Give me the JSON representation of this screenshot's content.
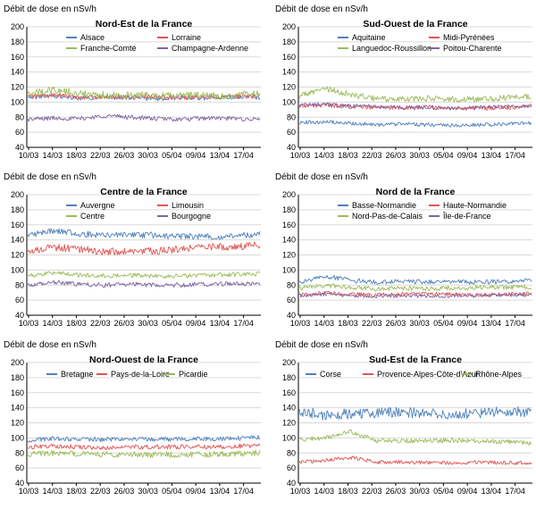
{
  "chart_data": [
    {
      "type": "line",
      "unit_label": "Débit de dose en nSv/h",
      "title": "Nord-Est de la France",
      "ylim": [
        40,
        200
      ],
      "yticks": [
        40,
        60,
        80,
        100,
        120,
        140,
        160,
        180,
        200
      ],
      "xticks": [
        "10/03",
        "14/03",
        "18/03",
        "22/03",
        "26/03",
        "30/03",
        "05/04",
        "09/04",
        "13/04",
        "17/04"
      ],
      "series": [
        {
          "name": "Alsace",
          "color": "#4f81bd",
          "mean": 106,
          "noise": 3,
          "values": [
            106,
            108,
            105,
            107,
            106,
            104,
            106,
            105,
            107,
            106
          ]
        },
        {
          "name": "Lorraine",
          "color": "#e05555",
          "mean": 107,
          "noise": 3,
          "values": [
            108,
            109,
            107,
            106,
            107,
            107,
            106,
            107,
            107,
            108
          ]
        },
        {
          "name": "Franche-Comté",
          "color": "#9bbb59",
          "mean": 109,
          "noise": 5,
          "values": [
            110,
            116,
            112,
            109,
            110,
            108,
            109,
            108,
            109,
            111
          ]
        },
        {
          "name": "Champagne-Ardenne",
          "color": "#8064a2",
          "mean": 78,
          "noise": 3,
          "values": [
            77,
            79,
            78,
            82,
            80,
            78,
            77,
            79,
            78,
            77
          ]
        }
      ]
    },
    {
      "type": "line",
      "unit_label": "Débit de dose en nSv/h",
      "title": "Sud-Ouest de la France",
      "ylim": [
        40,
        200
      ],
      "yticks": [
        40,
        60,
        80,
        100,
        120,
        140,
        160,
        180,
        200
      ],
      "xticks": [
        "10/03",
        "14/03",
        "18/03",
        "22/03",
        "26/03",
        "30/03",
        "05/04",
        "09/04",
        "13/04",
        "17/04"
      ],
      "series": [
        {
          "name": "Aquitaine",
          "color": "#4f81bd",
          "mean": 72,
          "noise": 2.5,
          "values": [
            73,
            74,
            72,
            70,
            71,
            70,
            69,
            70,
            71,
            72
          ]
        },
        {
          "name": "Midi-Pyrénées",
          "color": "#e05555",
          "mean": 94,
          "noise": 3,
          "values": [
            95,
            96,
            94,
            93,
            93,
            93,
            92,
            92,
            93,
            94
          ]
        },
        {
          "name": "Languedoc-Roussillon",
          "color": "#9bbb59",
          "mean": 106,
          "noise": 4,
          "values": [
            108,
            118,
            110,
            104,
            104,
            105,
            104,
            104,
            106,
            107
          ]
        },
        {
          "name": "Poitou-Charente",
          "color": "#8064a2",
          "mean": 94,
          "noise": 2.5,
          "values": [
            96,
            97,
            95,
            94,
            93,
            93,
            92,
            93,
            94,
            95
          ]
        }
      ]
    },
    {
      "type": "line",
      "unit_label": "Débit de dose en nSv/h",
      "title": "Centre de la France",
      "ylim": [
        40,
        200
      ],
      "yticks": [
        40,
        60,
        80,
        100,
        120,
        140,
        160,
        180,
        200
      ],
      "xticks": [
        "10/03",
        "14/03",
        "18/03",
        "22/03",
        "26/03",
        "30/03",
        "05/04",
        "09/04",
        "13/04",
        "17/04"
      ],
      "series": [
        {
          "name": "Auvergne",
          "color": "#4f81bd",
          "mean": 146,
          "noise": 4,
          "values": [
            146,
            152,
            148,
            146,
            147,
            146,
            145,
            144,
            145,
            148
          ]
        },
        {
          "name": "Limousin",
          "color": "#e05555",
          "mean": 128,
          "noise": 5,
          "values": [
            125,
            130,
            128,
            124,
            126,
            125,
            128,
            130,
            131,
            133
          ]
        },
        {
          "name": "Centre",
          "color": "#9bbb59",
          "mean": 93,
          "noise": 3,
          "values": [
            92,
            96,
            93,
            92,
            93,
            92,
            92,
            93,
            94,
            95
          ]
        },
        {
          "name": "Bourgogne",
          "color": "#8064a2",
          "mean": 81,
          "noise": 3,
          "values": [
            80,
            84,
            81,
            80,
            81,
            80,
            80,
            81,
            82,
            82
          ]
        }
      ]
    },
    {
      "type": "line",
      "unit_label": "Débit de dose en nSv/h",
      "title": "Nord de la France",
      "ylim": [
        40,
        200
      ],
      "yticks": [
        40,
        60,
        80,
        100,
        120,
        140,
        160,
        180,
        200
      ],
      "xticks": [
        "10/03",
        "14/03",
        "18/03",
        "22/03",
        "26/03",
        "30/03",
        "05/04",
        "09/04",
        "13/04",
        "17/04"
      ],
      "series": [
        {
          "name": "Basse-Normandie",
          "color": "#4f81bd",
          "mean": 84,
          "noise": 3,
          "values": [
            84,
            92,
            86,
            84,
            85,
            84,
            84,
            84,
            85,
            86
          ]
        },
        {
          "name": "Haute-Normandie",
          "color": "#e05555",
          "mean": 68,
          "noise": 2.5,
          "values": [
            67,
            70,
            68,
            67,
            68,
            68,
            68,
            67,
            68,
            69
          ]
        },
        {
          "name": "Nord-Pas-de-Calais",
          "color": "#9bbb59",
          "mean": 76,
          "noise": 3,
          "values": [
            76,
            80,
            77,
            75,
            76,
            75,
            76,
            77,
            77,
            78
          ]
        },
        {
          "name": "Île-de-France",
          "color": "#8064a2",
          "mean": 66,
          "noise": 2.5,
          "values": [
            66,
            68,
            66,
            65,
            66,
            65,
            66,
            66,
            67,
            67
          ]
        }
      ]
    },
    {
      "type": "line",
      "unit_label": "Débit de dose en nSv/h",
      "title": "Nord-Ouest de la France",
      "ylim": [
        40,
        200
      ],
      "yticks": [
        40,
        60,
        80,
        100,
        120,
        140,
        160,
        180,
        200
      ],
      "xticks": [
        "10/03",
        "14/03",
        "18/03",
        "22/03",
        "26/03",
        "30/03",
        "05/04",
        "09/04",
        "13/04",
        "17/04"
      ],
      "series": [
        {
          "name": "Bretagne",
          "color": "#4f81bd",
          "mean": 98,
          "noise": 3,
          "values": [
            97,
            99,
            98,
            98,
            99,
            98,
            98,
            99,
            99,
            101
          ]
        },
        {
          "name": "Pays-de-la-Loire",
          "color": "#e05555",
          "mean": 88,
          "noise": 3,
          "values": [
            88,
            89,
            88,
            87,
            88,
            88,
            88,
            88,
            89,
            90
          ]
        },
        {
          "name": "Picardie",
          "color": "#9bbb59",
          "mean": 78,
          "noise": 4,
          "values": [
            78,
            80,
            79,
            78,
            78,
            78,
            78,
            78,
            79,
            80
          ]
        }
      ]
    },
    {
      "type": "line",
      "unit_label": "Débit de dose en nSv/h",
      "title": "Sud-Est de la France",
      "ylim": [
        40,
        200
      ],
      "yticks": [
        40,
        60,
        80,
        100,
        120,
        140,
        160,
        180,
        200
      ],
      "xticks": [
        "10/03",
        "14/03",
        "18/03",
        "22/03",
        "26/03",
        "30/03",
        "05/04",
        "09/04",
        "13/04",
        "17/04"
      ],
      "series": [
        {
          "name": "Corse",
          "color": "#4f81bd",
          "mean": 133,
          "noise": 7,
          "values": [
            135,
            130,
            132,
            133,
            134,
            132,
            131,
            133,
            135,
            134
          ]
        },
        {
          "name": "Provence-Alpes-Côte-d'Azur",
          "color": "#e05555",
          "mean": 68,
          "noise": 2.5,
          "values": [
            68,
            70,
            74,
            68,
            68,
            67,
            67,
            68,
            67,
            67
          ]
        },
        {
          "name": "Rhône-Alpes",
          "color": "#9bbb59",
          "mean": 97,
          "noise": 3,
          "values": [
            98,
            100,
            108,
            96,
            96,
            96,
            97,
            96,
            95,
            93
          ]
        }
      ]
    }
  ]
}
